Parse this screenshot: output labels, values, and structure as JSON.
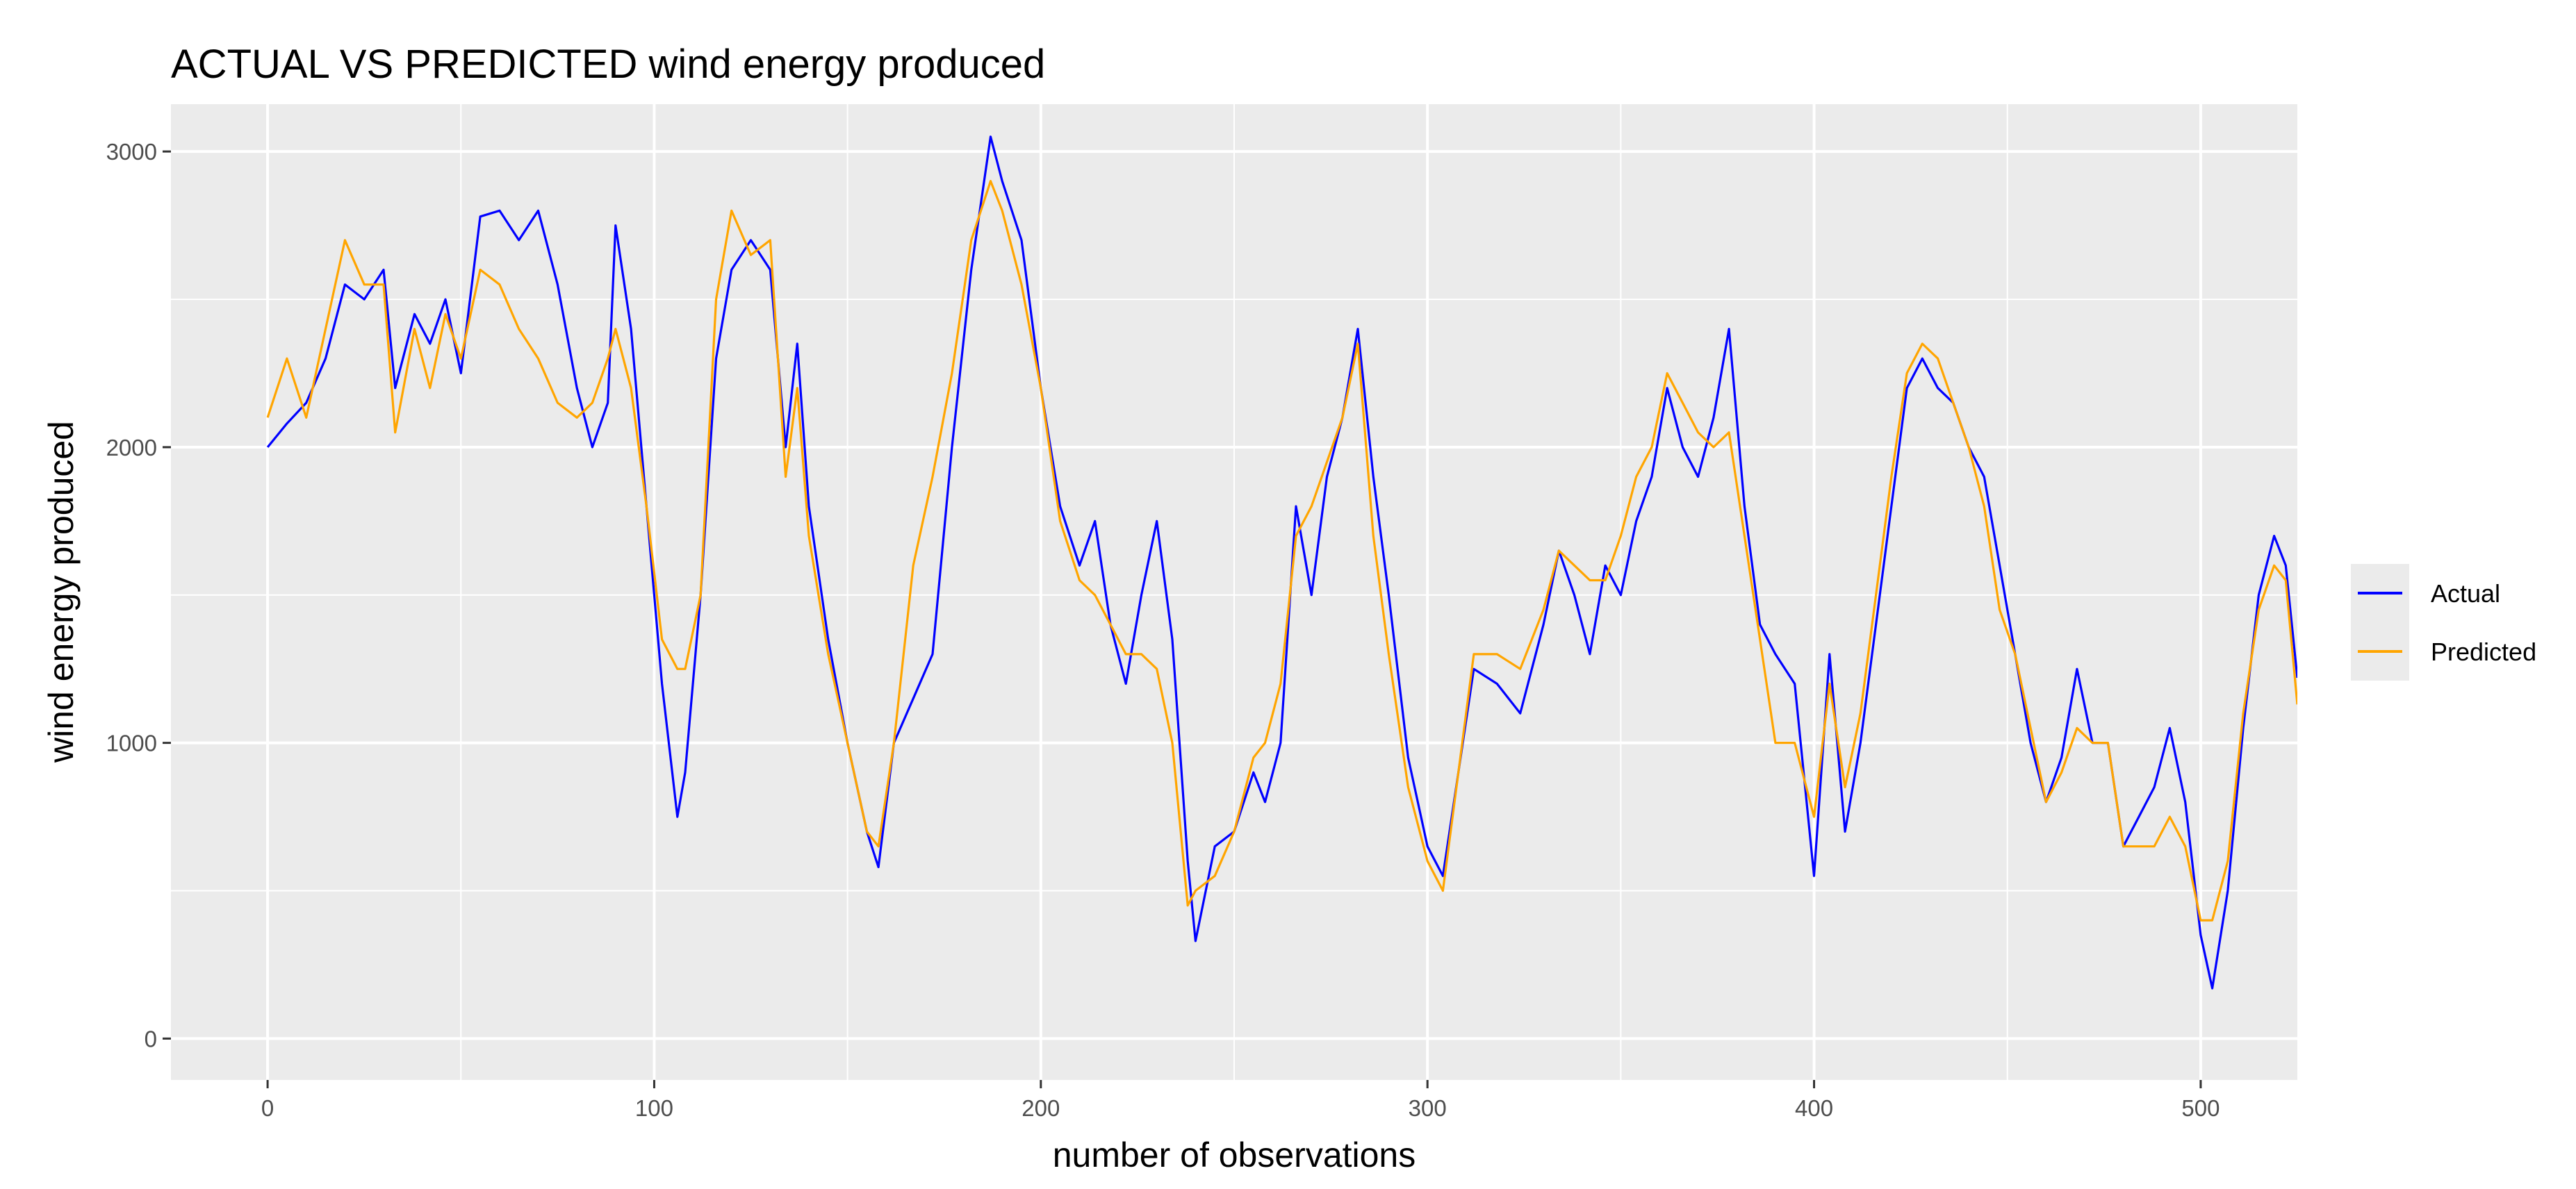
{
  "chart_data": {
    "type": "line",
    "title": "ACTUAL VS PREDICTED wind energy produced",
    "xlabel": "number of observations",
    "ylabel": "wind energy produced",
    "xlim": [
      -25,
      525
    ],
    "ylim": [
      -140,
      3160
    ],
    "x_ticks": [
      0,
      100,
      200,
      300,
      400,
      500
    ],
    "y_ticks": [
      0,
      1000,
      2000,
      3000
    ],
    "grid": true,
    "legend_position": "right",
    "colors": {
      "panel": "#ebebeb",
      "grid": "#ffffff",
      "Actual": "#0000ff",
      "Predicted": "#ffa500"
    },
    "series": [
      {
        "name": "Actual",
        "color": "#0000ff",
        "points": [
          [
            0,
            2000
          ],
          [
            5,
            2080
          ],
          [
            10,
            2150
          ],
          [
            15,
            2300
          ],
          [
            20,
            2550
          ],
          [
            25,
            2500
          ],
          [
            30,
            2600
          ],
          [
            33,
            2200
          ],
          [
            38,
            2450
          ],
          [
            42,
            2350
          ],
          [
            46,
            2500
          ],
          [
            50,
            2250
          ],
          [
            55,
            2780
          ],
          [
            60,
            2800
          ],
          [
            65,
            2700
          ],
          [
            70,
            2800
          ],
          [
            75,
            2550
          ],
          [
            80,
            2200
          ],
          [
            84,
            2000
          ],
          [
            88,
            2150
          ],
          [
            90,
            2750
          ],
          [
            94,
            2400
          ],
          [
            98,
            1800
          ],
          [
            102,
            1200
          ],
          [
            106,
            750
          ],
          [
            108,
            900
          ],
          [
            112,
            1500
          ],
          [
            116,
            2300
          ],
          [
            120,
            2600
          ],
          [
            125,
            2700
          ],
          [
            130,
            2600
          ],
          [
            134,
            2000
          ],
          [
            137,
            2350
          ],
          [
            140,
            1800
          ],
          [
            145,
            1350
          ],
          [
            150,
            1000
          ],
          [
            155,
            700
          ],
          [
            158,
            580
          ],
          [
            162,
            1000
          ],
          [
            167,
            1150
          ],
          [
            172,
            1300
          ],
          [
            177,
            2000
          ],
          [
            182,
            2600
          ],
          [
            187,
            3050
          ],
          [
            190,
            2900
          ],
          [
            195,
            2700
          ],
          [
            200,
            2200
          ],
          [
            205,
            1800
          ],
          [
            210,
            1600
          ],
          [
            214,
            1750
          ],
          [
            218,
            1400
          ],
          [
            222,
            1200
          ],
          [
            226,
            1500
          ],
          [
            230,
            1750
          ],
          [
            234,
            1350
          ],
          [
            238,
            600
          ],
          [
            240,
            330
          ],
          [
            245,
            650
          ],
          [
            250,
            700
          ],
          [
            255,
            900
          ],
          [
            258,
            800
          ],
          [
            262,
            1000
          ],
          [
            266,
            1800
          ],
          [
            270,
            1500
          ],
          [
            274,
            1900
          ],
          [
            278,
            2100
          ],
          [
            282,
            2400
          ],
          [
            286,
            1900
          ],
          [
            290,
            1500
          ],
          [
            295,
            950
          ],
          [
            300,
            650
          ],
          [
            304,
            550
          ],
          [
            308,
            900
          ],
          [
            312,
            1250
          ],
          [
            318,
            1200
          ],
          [
            324,
            1100
          ],
          [
            330,
            1400
          ],
          [
            334,
            1650
          ],
          [
            338,
            1500
          ],
          [
            342,
            1300
          ],
          [
            346,
            1600
          ],
          [
            350,
            1500
          ],
          [
            354,
            1750
          ],
          [
            358,
            1900
          ],
          [
            362,
            2200
          ],
          [
            366,
            2000
          ],
          [
            370,
            1900
          ],
          [
            374,
            2100
          ],
          [
            378,
            2400
          ],
          [
            382,
            1800
          ],
          [
            386,
            1400
          ],
          [
            390,
            1300
          ],
          [
            395,
            1200
          ],
          [
            400,
            550
          ],
          [
            404,
            1300
          ],
          [
            408,
            700
          ],
          [
            412,
            1000
          ],
          [
            416,
            1400
          ],
          [
            420,
            1800
          ],
          [
            424,
            2200
          ],
          [
            428,
            2300
          ],
          [
            432,
            2200
          ],
          [
            436,
            2150
          ],
          [
            440,
            2000
          ],
          [
            444,
            1900
          ],
          [
            448,
            1600
          ],
          [
            452,
            1300
          ],
          [
            456,
            1000
          ],
          [
            460,
            800
          ],
          [
            464,
            950
          ],
          [
            468,
            1250
          ],
          [
            472,
            1000
          ],
          [
            476,
            1000
          ],
          [
            480,
            650
          ],
          [
            484,
            750
          ],
          [
            488,
            850
          ],
          [
            492,
            1050
          ],
          [
            496,
            800
          ],
          [
            500,
            350
          ],
          [
            503,
            170
          ],
          [
            507,
            500
          ],
          [
            511,
            1050
          ],
          [
            515,
            1500
          ],
          [
            519,
            1700
          ],
          [
            522,
            1600
          ],
          [
            525,
            1220
          ]
        ]
      },
      {
        "name": "Predicted",
        "color": "#ffa500",
        "points": [
          [
            0,
            2100
          ],
          [
            5,
            2300
          ],
          [
            10,
            2100
          ],
          [
            15,
            2400
          ],
          [
            20,
            2700
          ],
          [
            25,
            2550
          ],
          [
            30,
            2550
          ],
          [
            33,
            2050
          ],
          [
            38,
            2400
          ],
          [
            42,
            2200
          ],
          [
            46,
            2450
          ],
          [
            50,
            2300
          ],
          [
            55,
            2600
          ],
          [
            60,
            2550
          ],
          [
            65,
            2400
          ],
          [
            70,
            2300
          ],
          [
            75,
            2150
          ],
          [
            80,
            2100
          ],
          [
            84,
            2150
          ],
          [
            88,
            2300
          ],
          [
            90,
            2400
          ],
          [
            94,
            2200
          ],
          [
            98,
            1800
          ],
          [
            102,
            1350
          ],
          [
            106,
            1250
          ],
          [
            108,
            1250
          ],
          [
            112,
            1500
          ],
          [
            116,
            2500
          ],
          [
            120,
            2800
          ],
          [
            125,
            2650
          ],
          [
            130,
            2700
          ],
          [
            134,
            1900
          ],
          [
            137,
            2200
          ],
          [
            140,
            1700
          ],
          [
            145,
            1300
          ],
          [
            150,
            1000
          ],
          [
            155,
            700
          ],
          [
            158,
            650
          ],
          [
            162,
            1000
          ],
          [
            167,
            1600
          ],
          [
            172,
            1900
          ],
          [
            177,
            2250
          ],
          [
            182,
            2700
          ],
          [
            187,
            2900
          ],
          [
            190,
            2800
          ],
          [
            195,
            2550
          ],
          [
            200,
            2200
          ],
          [
            205,
            1750
          ],
          [
            210,
            1550
          ],
          [
            214,
            1500
          ],
          [
            218,
            1400
          ],
          [
            222,
            1300
          ],
          [
            226,
            1300
          ],
          [
            230,
            1250
          ],
          [
            234,
            1000
          ],
          [
            238,
            450
          ],
          [
            240,
            500
          ],
          [
            245,
            550
          ],
          [
            250,
            700
          ],
          [
            255,
            950
          ],
          [
            258,
            1000
          ],
          [
            262,
            1200
          ],
          [
            266,
            1700
          ],
          [
            270,
            1800
          ],
          [
            274,
            1950
          ],
          [
            278,
            2100
          ],
          [
            282,
            2350
          ],
          [
            286,
            1700
          ],
          [
            290,
            1300
          ],
          [
            295,
            850
          ],
          [
            300,
            600
          ],
          [
            304,
            500
          ],
          [
            308,
            900
          ],
          [
            312,
            1300
          ],
          [
            318,
            1300
          ],
          [
            324,
            1250
          ],
          [
            330,
            1450
          ],
          [
            334,
            1650
          ],
          [
            338,
            1600
          ],
          [
            342,
            1550
          ],
          [
            346,
            1550
          ],
          [
            350,
            1700
          ],
          [
            354,
            1900
          ],
          [
            358,
            2000
          ],
          [
            362,
            2250
          ],
          [
            366,
            2150
          ],
          [
            370,
            2050
          ],
          [
            374,
            2000
          ],
          [
            378,
            2050
          ],
          [
            382,
            1700
          ],
          [
            386,
            1350
          ],
          [
            390,
            1000
          ],
          [
            395,
            1000
          ],
          [
            400,
            750
          ],
          [
            404,
            1200
          ],
          [
            408,
            850
          ],
          [
            412,
            1100
          ],
          [
            416,
            1500
          ],
          [
            420,
            1900
          ],
          [
            424,
            2250
          ],
          [
            428,
            2350
          ],
          [
            432,
            2300
          ],
          [
            436,
            2150
          ],
          [
            440,
            2000
          ],
          [
            444,
            1800
          ],
          [
            448,
            1450
          ],
          [
            452,
            1300
          ],
          [
            456,
            1050
          ],
          [
            460,
            800
          ],
          [
            464,
            900
          ],
          [
            468,
            1050
          ],
          [
            472,
            1000
          ],
          [
            476,
            1000
          ],
          [
            480,
            650
          ],
          [
            484,
            650
          ],
          [
            488,
            650
          ],
          [
            492,
            750
          ],
          [
            496,
            650
          ],
          [
            500,
            400
          ],
          [
            503,
            400
          ],
          [
            507,
            600
          ],
          [
            511,
            1100
          ],
          [
            515,
            1450
          ],
          [
            519,
            1600
          ],
          [
            522,
            1550
          ],
          [
            525,
            1130
          ]
        ]
      }
    ]
  }
}
